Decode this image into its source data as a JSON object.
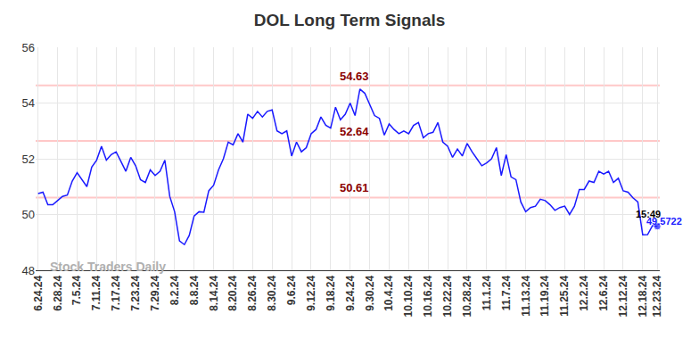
{
  "chart_data": {
    "type": "line",
    "title": "DOL Long Term Signals",
    "categories": [
      "6.24.24",
      null,
      null,
      null,
      "6.28.24",
      null,
      null,
      null,
      "7.5.24",
      null,
      null,
      null,
      "7.11.24",
      null,
      null,
      null,
      "7.17.24",
      null,
      null,
      null,
      "7.23.24",
      null,
      null,
      null,
      "7.29.24",
      null,
      null,
      null,
      "8.2.24",
      null,
      null,
      null,
      "8.8.24",
      null,
      null,
      null,
      "8.14.24",
      null,
      null,
      null,
      "8.20.24",
      null,
      null,
      null,
      "8.26.24",
      null,
      null,
      null,
      "8.30.24",
      null,
      null,
      null,
      "9.6.24",
      null,
      null,
      null,
      "9.12.24",
      null,
      null,
      null,
      "9.18.24",
      null,
      null,
      null,
      "9.24.24",
      null,
      null,
      null,
      "9.30.24",
      null,
      null,
      null,
      "10.4.24",
      null,
      null,
      null,
      "10.10.24",
      null,
      null,
      null,
      "10.16.24",
      null,
      null,
      null,
      "10.22.24",
      null,
      null,
      null,
      "10.28.24",
      null,
      null,
      null,
      "11.1.24",
      null,
      null,
      null,
      "11.7.24",
      null,
      null,
      null,
      "11.13.24",
      null,
      null,
      null,
      "11.19.24",
      null,
      null,
      null,
      "11.25.24",
      null,
      null,
      null,
      "12.2.24",
      null,
      null,
      null,
      "12.6.24",
      null,
      null,
      null,
      "12.12.24",
      null,
      null,
      null,
      "12.18.24",
      null,
      null,
      "12.23.24"
    ],
    "values": [
      50.75,
      50.8,
      50.35,
      50.35,
      50.5,
      50.65,
      50.7,
      51.2,
      51.5,
      51.25,
      51.0,
      51.7,
      51.95,
      52.45,
      51.95,
      52.15,
      52.25,
      51.9,
      51.55,
      52.05,
      51.75,
      51.25,
      51.15,
      51.6,
      51.4,
      51.55,
      51.95,
      50.65,
      50.1,
      49.05,
      48.92,
      49.25,
      49.95,
      50.1,
      50.08,
      50.85,
      51.05,
      51.6,
      52.0,
      52.6,
      52.5,
      52.9,
      52.6,
      53.6,
      53.45,
      53.7,
      53.5,
      53.7,
      53.75,
      53.0,
      52.9,
      53.0,
      52.1,
      52.6,
      52.25,
      52.4,
      52.9,
      53.05,
      53.5,
      53.2,
      53.1,
      53.85,
      53.4,
      53.6,
      54.0,
      53.55,
      54.5,
      54.35,
      53.95,
      53.55,
      53.45,
      52.85,
      53.25,
      53.05,
      52.9,
      53.0,
      52.9,
      53.2,
      53.3,
      52.75,
      52.9,
      52.95,
      53.3,
      52.6,
      52.45,
      52.05,
      52.35,
      52.1,
      52.55,
      52.25,
      52.0,
      51.75,
      51.85,
      52.0,
      52.4,
      51.4,
      52.15,
      51.35,
      51.25,
      50.45,
      50.1,
      50.25,
      50.3,
      50.55,
      50.5,
      50.35,
      50.15,
      50.25,
      50.3,
      50.0,
      50.3,
      50.9,
      50.9,
      51.2,
      51.15,
      51.55,
      51.45,
      51.55,
      51.15,
      51.3,
      50.85,
      50.8,
      50.6,
      50.45,
      49.27,
      49.28,
      49.6,
      49.5722
    ],
    "color": "#1a1aff",
    "ylim": [
      48,
      56
    ],
    "yticks": [
      48,
      50,
      52,
      54,
      56
    ],
    "grid": true,
    "reference_lines": [
      54.63,
      52.64,
      50.61
    ],
    "last_point": {
      "time": "15:49",
      "value": 49.5722
    },
    "watermark": "Stock Traders Daily"
  }
}
